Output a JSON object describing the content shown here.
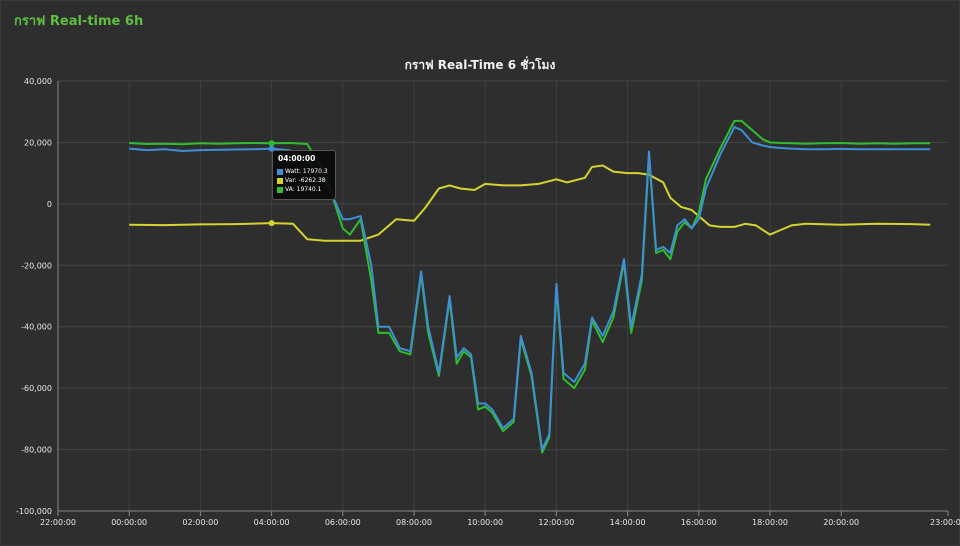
{
  "panel": {
    "title": "กราฟ Real-time 6h"
  },
  "chart_data": {
    "type": "line",
    "title": "กราฟ Real-Time 6 ชั่วโมง",
    "xlabel": "",
    "ylabel": "",
    "x_unit": "hours since 22:00",
    "xlim": [
      0,
      25
    ],
    "ylim": [
      -100000,
      40000
    ],
    "x_ticks": [
      "22:00:00",
      "00:00:00",
      "02:00:00",
      "04:00:00",
      "06:00:00",
      "08:00:00",
      "10:00:00",
      "12:00:00",
      "14:00:00",
      "16:00:00",
      "18:00:00",
      "20:00:00",
      "23:00:00"
    ],
    "y_ticks": [
      "40,000",
      "20,000",
      "0",
      "-20,000",
      "-40,000",
      "-60,000",
      "-80,000",
      "-100,000"
    ],
    "grid": true,
    "colors": {
      "Watt": "#3f8fd6",
      "Var": "#d4d42e",
      "VA": "#2ebd2e"
    },
    "series": [
      {
        "name": "Watt",
        "x": [
          0,
          0.5,
          1,
          1.5,
          2,
          2.5,
          3,
          3.5,
          4,
          4.5,
          5,
          5.5,
          6,
          6.2,
          6.5,
          6.8,
          7,
          7.3,
          7.6,
          7.9,
          8.2,
          8.4,
          8.7,
          9,
          9.2,
          9.4,
          9.6,
          9.8,
          10,
          10.2,
          10.5,
          10.8,
          11,
          11.3,
          11.6,
          11.8,
          12,
          12.2,
          12.5,
          12.8,
          13,
          13.3,
          13.6,
          13.9,
          14.1,
          14.4,
          14.6,
          14.8,
          15,
          15.2,
          15.4,
          15.6,
          15.8,
          16,
          16.2,
          16.6,
          17,
          17.2,
          17.5,
          17.8,
          18,
          18.3,
          18.6,
          19,
          19.5,
          20,
          20.5,
          21,
          21.5,
          22,
          22.5
        ],
        "values": [
          18000,
          17500,
          17800,
          17200,
          17500,
          17600,
          17700,
          17800,
          17970,
          17500,
          14000,
          8000,
          -5000,
          -5000,
          -4000,
          -20000,
          -40000,
          -40000,
          -47000,
          -48000,
          -22000,
          -40000,
          -55000,
          -30000,
          -50000,
          -47000,
          -49000,
          -65000,
          -65000,
          -67000,
          -73000,
          -70000,
          -43000,
          -55000,
          -80000,
          -75000,
          -26000,
          -55000,
          -58000,
          -52000,
          -37000,
          -43000,
          -35000,
          -18000,
          -40000,
          -23000,
          17000,
          -15000,
          -14000,
          -16000,
          -7000,
          -5000,
          -8000,
          -5000,
          5000,
          16000,
          25000,
          24000,
          20000,
          19000,
          18500,
          18200,
          18000,
          17800,
          17800,
          17900,
          17800,
          17800,
          17800,
          17800,
          17800
        ]
      },
      {
        "name": "Var",
        "x": [
          0,
          1,
          2,
          3,
          4,
          4.6,
          5,
          5.5,
          6,
          6.5,
          7,
          7.5,
          8,
          8.3,
          8.7,
          9,
          9.3,
          9.7,
          10,
          10.5,
          11,
          11.5,
          12,
          12.3,
          12.8,
          13,
          13.3,
          13.6,
          14,
          14.3,
          14.6,
          15,
          15.2,
          15.5,
          15.8,
          16,
          16.3,
          16.6,
          17,
          17.3,
          17.6,
          18,
          18.3,
          18.6,
          19,
          20,
          21,
          22,
          22.5
        ],
        "values": [
          -6800,
          -6900,
          -6700,
          -6600,
          -6262,
          -6500,
          -11500,
          -12000,
          -12000,
          -12000,
          -10000,
          -5000,
          -5500,
          -1500,
          5000,
          6000,
          5000,
          4500,
          6500,
          6000,
          6000,
          6500,
          8000,
          7000,
          8500,
          12000,
          12500,
          10500,
          10000,
          10000,
          9500,
          7000,
          2000,
          -1000,
          -2000,
          -4000,
          -7000,
          -7500,
          -7500,
          -6500,
          -7000,
          -10000,
          -8500,
          -7000,
          -6500,
          -6800,
          -6500,
          -6600,
          -6800
        ]
      },
      {
        "name": "VA",
        "x": [
          0,
          0.5,
          1,
          1.5,
          2,
          2.5,
          3,
          3.5,
          4,
          4.5,
          5,
          5.5,
          6,
          6.2,
          6.5,
          6.8,
          7,
          7.3,
          7.6,
          7.9,
          8.2,
          8.4,
          8.7,
          9,
          9.2,
          9.4,
          9.6,
          9.8,
          10,
          10.2,
          10.5,
          10.8,
          11,
          11.3,
          11.6,
          11.8,
          12,
          12.2,
          12.5,
          12.8,
          13,
          13.3,
          13.6,
          13.9,
          14.1,
          14.4,
          14.6,
          14.8,
          15,
          15.2,
          15.4,
          15.6,
          15.8,
          16,
          16.2,
          16.6,
          17,
          17.2,
          17.5,
          17.8,
          18,
          18.3,
          18.6,
          19,
          19.5,
          20,
          20.5,
          21,
          21.5,
          22,
          22.5
        ],
        "values": [
          19800,
          19500,
          19600,
          19400,
          19700,
          19600,
          19700,
          19800,
          19740,
          19800,
          19500,
          10000,
          -8000,
          -10000,
          -5000,
          -25000,
          -42000,
          -42000,
          -48000,
          -49000,
          -23000,
          -42000,
          -56000,
          -31000,
          -52000,
          -48000,
          -50000,
          -67000,
          -66000,
          -68000,
          -74000,
          -71000,
          -44000,
          -56000,
          -81000,
          -76000,
          -27000,
          -57000,
          -60000,
          -54000,
          -38000,
          -45000,
          -37000,
          -19000,
          -42000,
          -25000,
          16000,
          -16000,
          -15000,
          -18000,
          -9000,
          -6000,
          -8000,
          -3000,
          8000,
          18000,
          27000,
          27000,
          24000,
          21000,
          20000,
          19800,
          19700,
          19600,
          19700,
          19800,
          19600,
          19700,
          19600,
          19700,
          19700
        ]
      }
    ],
    "tooltip": {
      "time": "04:00:00",
      "rows": [
        {
          "label": "Watt: 17970.3",
          "color": "#3f8fd6"
        },
        {
          "label": "Var: -6262.38",
          "color": "#d4d42e"
        },
        {
          "label": "VA: 19740.1",
          "color": "#2ebd2e"
        }
      ]
    }
  }
}
